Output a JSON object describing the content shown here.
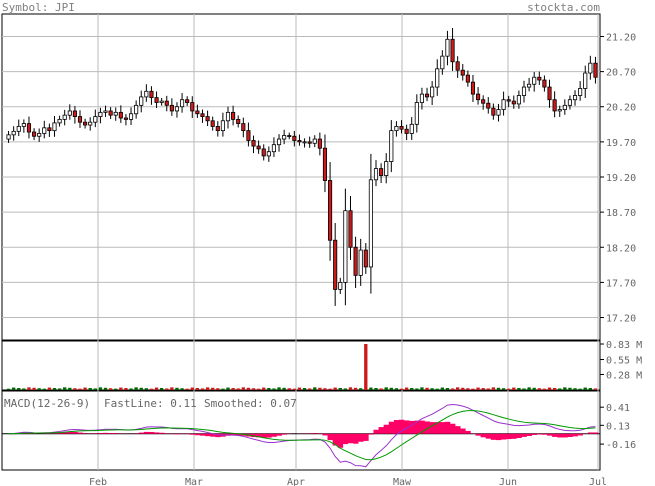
{
  "header": {
    "symbol_label": "Symbol: JPI",
    "source_label": "stockta.com"
  },
  "chart_data": [
    {
      "type": "candlestick",
      "symbol": "JPI",
      "y_ticks": [
        17.2,
        17.7,
        18.2,
        18.7,
        19.2,
        19.7,
        20.2,
        20.7,
        21.2
      ],
      "ylim": [
        16.88,
        21.52
      ],
      "x_labels": [
        "Feb",
        "Mar",
        "Apr",
        "Maw",
        "Jun",
        "Jul"
      ],
      "grid": true,
      "up_color": "#ffffff",
      "down_color": "#cc1a1a",
      "closes": [
        19.8,
        19.85,
        19.92,
        19.96,
        19.84,
        19.78,
        19.82,
        19.9,
        19.86,
        19.97,
        20.02,
        20.08,
        20.14,
        20.06,
        19.98,
        19.94,
        19.98,
        20.06,
        20.12,
        20.14,
        20.08,
        20.12,
        20.04,
        20.02,
        20.1,
        20.22,
        20.34,
        20.42,
        20.33,
        20.26,
        20.28,
        20.22,
        20.14,
        20.2,
        20.3,
        20.26,
        20.14,
        20.1,
        20.06,
        20.0,
        19.92,
        19.86,
        20.0,
        20.12,
        20.02,
        19.96,
        19.86,
        19.72,
        19.64,
        19.6,
        19.5,
        19.56,
        19.66,
        19.74,
        19.79,
        19.78,
        19.72,
        19.7,
        19.7,
        19.68,
        19.74,
        19.61,
        19.15,
        18.3,
        17.6,
        17.7,
        18.72,
        18.2,
        17.8,
        18.16,
        17.92,
        19.16,
        19.32,
        19.22,
        19.42,
        19.86,
        19.92,
        19.88,
        19.82,
        19.95,
        20.26,
        20.38,
        20.34,
        20.48,
        20.74,
        20.92,
        21.16,
        20.84,
        20.72,
        20.65,
        20.55,
        20.38,
        20.3,
        20.25,
        20.18,
        20.08,
        20.16,
        20.3,
        20.28,
        20.24,
        20.36,
        20.48,
        20.52,
        20.62,
        20.58,
        20.48,
        20.3,
        20.14,
        20.16,
        20.22,
        20.3,
        20.36,
        20.46,
        20.68,
        20.82,
        20.62
      ],
      "volume_ticks": [
        "0.83 M",
        "0.55 M",
        "0.28 M"
      ],
      "volume_peak": 0.83,
      "volume_typical": 0.04,
      "volume_peak_index": 70,
      "macd": {
        "label": "MACD(12-26-9)",
        "fastline_label": "FastLine: 0.11",
        "smoothed_label": "Smoothed: 0.07",
        "fastline_value": 0.11,
        "smoothed_value": 0.07,
        "fastline_color": "#9932cc",
        "smoothed_color": "#009900",
        "histogram_color": "#ff0066",
        "y_ticks": [
          0.41,
          0.13,
          -0.16
        ],
        "ylim": [
          -0.56,
          0.66
        ]
      }
    }
  ]
}
